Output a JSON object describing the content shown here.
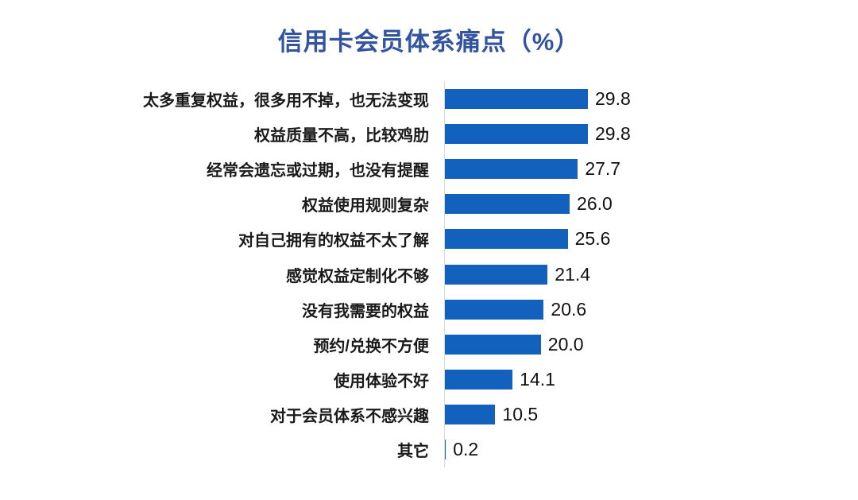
{
  "title": "信用卡会员体系痛点（%）",
  "colors": {
    "title_text": "#32539F",
    "bar_fill": "#1262BD",
    "axis_line": "#D9D9D9",
    "label_text": "#1A1A1A",
    "value_text": "#111111",
    "background": "#FFFFFF"
  },
  "chart_data": {
    "type": "bar",
    "orientation": "horizontal",
    "title": "信用卡会员体系痛点（%）",
    "xlabel": "",
    "ylabel": "",
    "unit": "%",
    "value_decimals": 1,
    "xlim": [
      0,
      31
    ],
    "grid": false,
    "legend": "none",
    "sort_order": "descending",
    "categories": [
      "太多重复权益，很多用不掉，也无法变现",
      "权益质量不高，比较鸡肋",
      "经常会遗忘或过期，也没有提醒",
      "权益使用规则复杂",
      "对自己拥有的权益不太了解",
      "感觉权益定制化不够",
      "没有我需要的权益",
      "预约/兑换不方便",
      "使用体验不好",
      "对于会员体系不感兴趣",
      "其它"
    ],
    "values": [
      29.8,
      29.8,
      27.7,
      26.0,
      25.6,
      21.4,
      20.6,
      20.0,
      14.1,
      10.5,
      0.2
    ]
  }
}
